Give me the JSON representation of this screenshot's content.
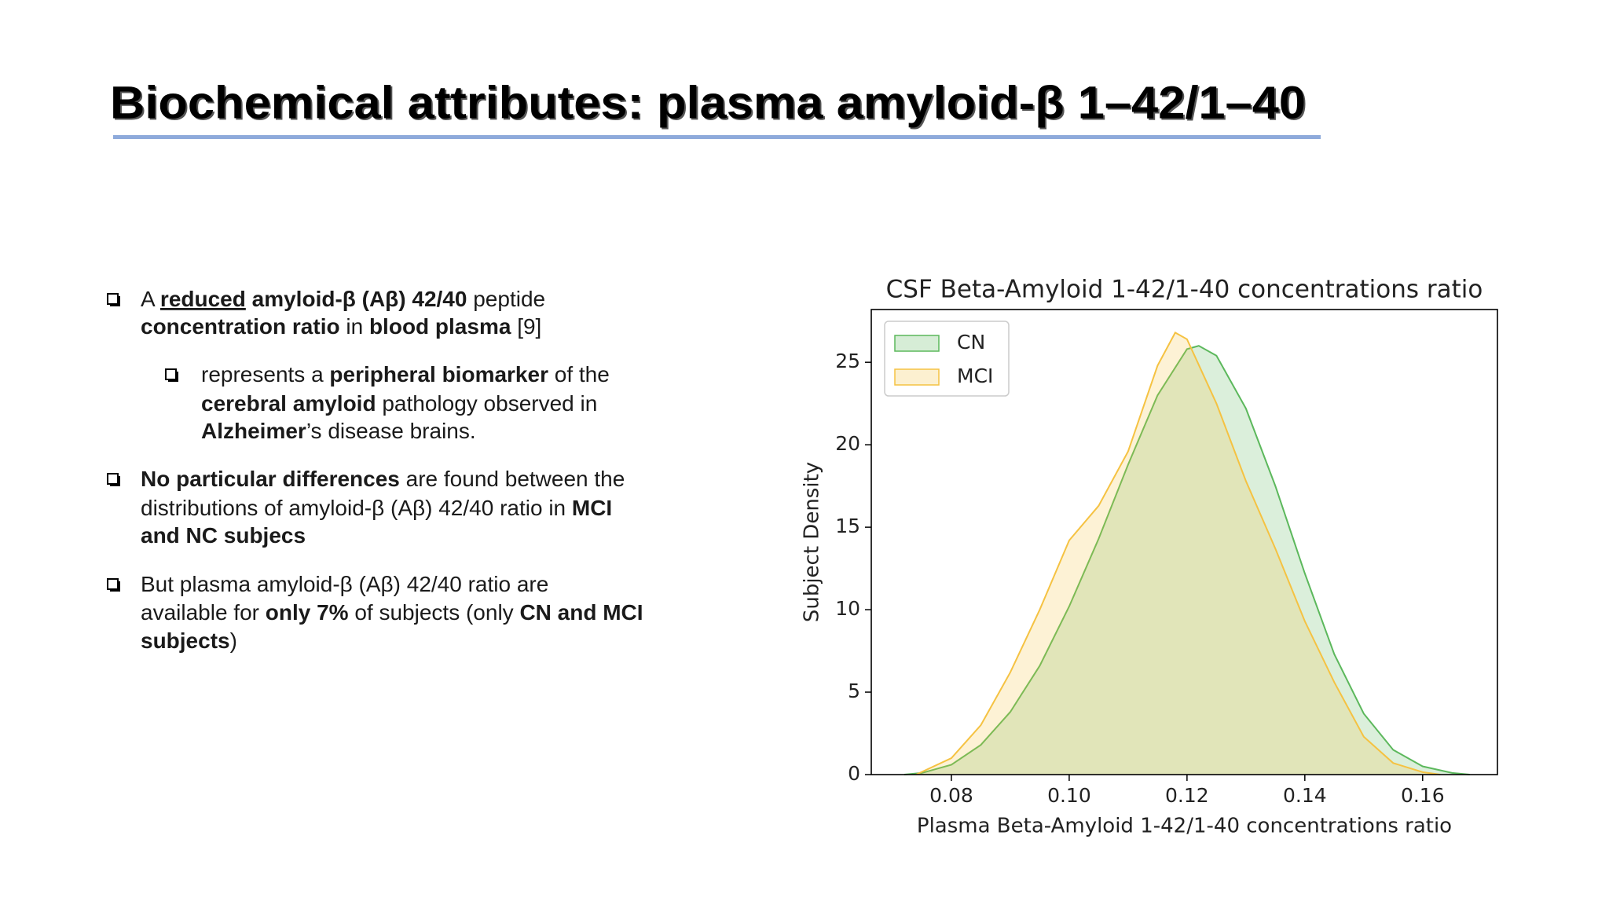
{
  "header": {
    "title": "Biochemical attributes: plasma amyloid-β 1–42/1–40"
  },
  "bullets": [
    {
      "level": 0,
      "lines": [
        [
          {
            "text": "A "
          },
          {
            "text": "reduced",
            "bold": true,
            "underline": true
          },
          {
            "text": " amyloid-β (Aβ) 42/40",
            "bold": true
          },
          {
            "text": " peptide"
          }
        ],
        [
          {
            "text": "concentration ratio",
            "bold": true
          },
          {
            "text": " in "
          },
          {
            "text": "blood plasma",
            "bold": true
          },
          {
            "text": " [9]"
          }
        ]
      ]
    },
    {
      "level": 1,
      "lines": [
        [
          {
            "text": "represents a "
          },
          {
            "text": "peripheral biomarker",
            "bold": true
          },
          {
            "text": " of the"
          }
        ],
        [
          {
            "text": "cerebral amyloid",
            "bold": true
          },
          {
            "text": " pathology observed in"
          }
        ],
        [
          {
            "text": "Alzheimer",
            "bold": true
          },
          {
            "text": "’s disease brains."
          }
        ]
      ]
    },
    {
      "level": 0,
      "lines": [
        [
          {
            "text": "No particular differences",
            "bold": true
          },
          {
            "text": " are found between the"
          }
        ],
        [
          {
            "text": "distributions of amyloid-β (Aβ) 42/40 ratio in "
          },
          {
            "text": "MCI",
            "bold": true
          }
        ],
        [
          {
            "text": "and NC subjecs",
            "bold": true
          }
        ]
      ]
    },
    {
      "level": 0,
      "lines": [
        [
          {
            "text": "But plasma amyloid-β (Aβ) 42/40 ratio are"
          }
        ],
        [
          {
            "text": "available for "
          },
          {
            "text": "only 7%",
            "bold": true
          },
          {
            "text": " of subjects (only "
          },
          {
            "text": "CN and MCI",
            "bold": true
          }
        ],
        [
          {
            "text": "subjects",
            "bold": true
          },
          {
            "text": ")"
          }
        ]
      ]
    }
  ],
  "chart_data": {
    "type": "area",
    "title": "CSF Beta-Amyloid 1-42/1-40 concentrations ratio",
    "x_label": "Plasma Beta-Amyloid 1-42/1-40 concentrations ratio",
    "y_label": "Subject Density",
    "xlim": [
      0.0664,
      0.1727
    ],
    "ylim": [
      0,
      28.2
    ],
    "xticks": [
      0.08,
      {
        "value": 0.1,
        "label": "0.10"
      },
      0.12,
      0.14,
      0.16
    ],
    "yticks": [
      0,
      5,
      10,
      15,
      20,
      25
    ],
    "legend": "upper left",
    "series": [
      {
        "name": "CN",
        "color": "#5cb85c",
        "x": [
          0.072,
          0.075,
          0.08,
          0.085,
          0.09,
          0.095,
          0.1,
          0.105,
          0.11,
          0.115,
          0.12,
          0.122,
          0.125,
          0.13,
          0.135,
          0.14,
          0.145,
          0.15,
          0.155,
          0.16,
          0.165,
          0.168
        ],
        "values": [
          0,
          0.1,
          0.6,
          1.8,
          3.8,
          6.6,
          10.2,
          14.3,
          18.8,
          23,
          25.8,
          26,
          25.4,
          22.2,
          17.5,
          12.2,
          7.3,
          3.7,
          1.5,
          0.5,
          0.1,
          0
        ]
      },
      {
        "name": "MCI",
        "color": "#f5c242",
        "x": [
          0.074,
          0.08,
          0.085,
          0.09,
          0.095,
          0.1,
          0.105,
          0.11,
          0.115,
          0.118,
          0.12,
          0.125,
          0.13,
          0.135,
          0.14,
          0.145,
          0.15,
          0.155,
          0.16,
          0.163
        ],
        "values": [
          0,
          1,
          3,
          6.2,
          10,
          14.2,
          16.3,
          19.6,
          24.8,
          26.8,
          26.4,
          22.5,
          17.8,
          13.7,
          9.3,
          5.6,
          2.3,
          0.7,
          0.15,
          0
        ]
      }
    ]
  }
}
